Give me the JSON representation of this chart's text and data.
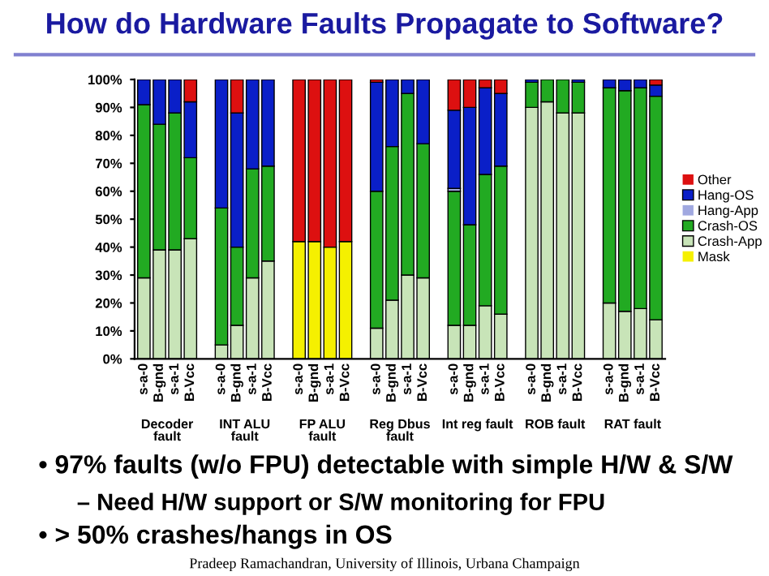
{
  "chart_data": {
    "type": "bar",
    "stacked": true,
    "title": "How do Hardware Faults Propagate to Software?",
    "categories": [
      "s-a-0",
      "B-gnd",
      "s-a-1",
      "B-Vcc",
      null,
      "s-a-0",
      "B-gnd",
      "s-a-1",
      "B-Vcc",
      null,
      "s-a-0",
      "B-gnd",
      "s-a-1",
      "B-Vcc",
      null,
      "s-a-0",
      "B-gnd",
      "s-a-1",
      "B-Vcc",
      null,
      "s-a-0",
      "B-gnd",
      "s-a-1",
      "B-Vcc",
      null,
      "s-a-0",
      "B-gnd",
      "s-a-1",
      "B-Vcc",
      null,
      "s-a-0",
      "B-gnd",
      "s-a-1",
      "B-Vcc"
    ],
    "series": [
      {
        "name": "Mask",
        "color": "#f5f000",
        "values": [
          0,
          0,
          0,
          0,
          null,
          0,
          0,
          0,
          0,
          null,
          42,
          42,
          40,
          42,
          null,
          0,
          0,
          0,
          0,
          null,
          0,
          0,
          0,
          0,
          null,
          0,
          0,
          0,
          0,
          null,
          0,
          0,
          0,
          0
        ]
      },
      {
        "name": "Crash-App",
        "color": "#c8e4b8",
        "values": [
          29,
          39,
          39,
          43,
          null,
          5,
          12,
          29,
          35,
          null,
          0,
          0,
          0,
          0,
          null,
          11,
          21,
          30,
          29,
          null,
          12,
          12,
          19,
          16,
          null,
          90,
          92,
          88,
          88,
          null,
          20,
          17,
          18,
          14
        ]
      },
      {
        "name": "Crash-OS",
        "color": "#22aa22",
        "values": [
          62,
          45,
          49,
          29,
          null,
          49,
          28,
          39,
          34,
          null,
          0,
          0,
          0,
          0,
          null,
          49,
          55,
          65,
          48,
          null,
          48,
          36,
          47,
          53,
          null,
          9,
          8,
          12,
          11,
          null,
          77,
          79,
          79,
          80
        ]
      },
      {
        "name": "Hang-App",
        "color": "#a0a8e0",
        "values": [
          0,
          0,
          0,
          0,
          null,
          0,
          0,
          0,
          0,
          null,
          0,
          0,
          0,
          0,
          null,
          0,
          0,
          0,
          0,
          null,
          1,
          0,
          0,
          0,
          null,
          0,
          0,
          0,
          0,
          null,
          0,
          0,
          0,
          0
        ]
      },
      {
        "name": "Hang-OS",
        "color": "#0a1fc8",
        "values": [
          9,
          16,
          12,
          20,
          null,
          46,
          48,
          32,
          31,
          null,
          0,
          0,
          0,
          0,
          null,
          39,
          24,
          5,
          23,
          null,
          28,
          42,
          31,
          26,
          null,
          1,
          0,
          0,
          1,
          null,
          3,
          4,
          3,
          4
        ]
      },
      {
        "name": "Other",
        "color": "#dd1010",
        "values": [
          0,
          0,
          0,
          8,
          null,
          0,
          12,
          0,
          0,
          null,
          58,
          58,
          60,
          58,
          null,
          1,
          0,
          0,
          0,
          null,
          11,
          10,
          3,
          5,
          null,
          0,
          0,
          0,
          0,
          null,
          0,
          0,
          0,
          2
        ]
      }
    ],
    "ylim": [
      0,
      100
    ],
    "yticks": [
      {
        "value": 0,
        "label": "0%"
      },
      {
        "value": 10,
        "label": "10%"
      },
      {
        "value": 20,
        "label": "20%"
      },
      {
        "value": 30,
        "label": "30%"
      },
      {
        "value": 40,
        "label": "40%"
      },
      {
        "value": 50,
        "label": "50%"
      },
      {
        "value": 60,
        "label": "60%"
      },
      {
        "value": 70,
        "label": "70%"
      },
      {
        "value": 80,
        "label": "80%"
      },
      {
        "value": 90,
        "label": "90%"
      },
      {
        "value": 100,
        "label": "100%"
      }
    ],
    "grid": false,
    "legend": "right",
    "annotations": [
      "Decoder\nfault",
      "INT ALU\nfault",
      "FP ALU\nfault",
      "Reg Dbus\nfault",
      "Int reg fault",
      "ROB fault",
      "RAT fault",
      "• 97% faults (w/o FPU) detectable with simple H/W & S/W",
      "– Need H/W support or S/W monitoring for FPU",
      "• > 50% crashes/hangs in OS",
      "Pradeep Ramachandran, University of Illinois, Urbana Champaign"
    ]
  }
}
